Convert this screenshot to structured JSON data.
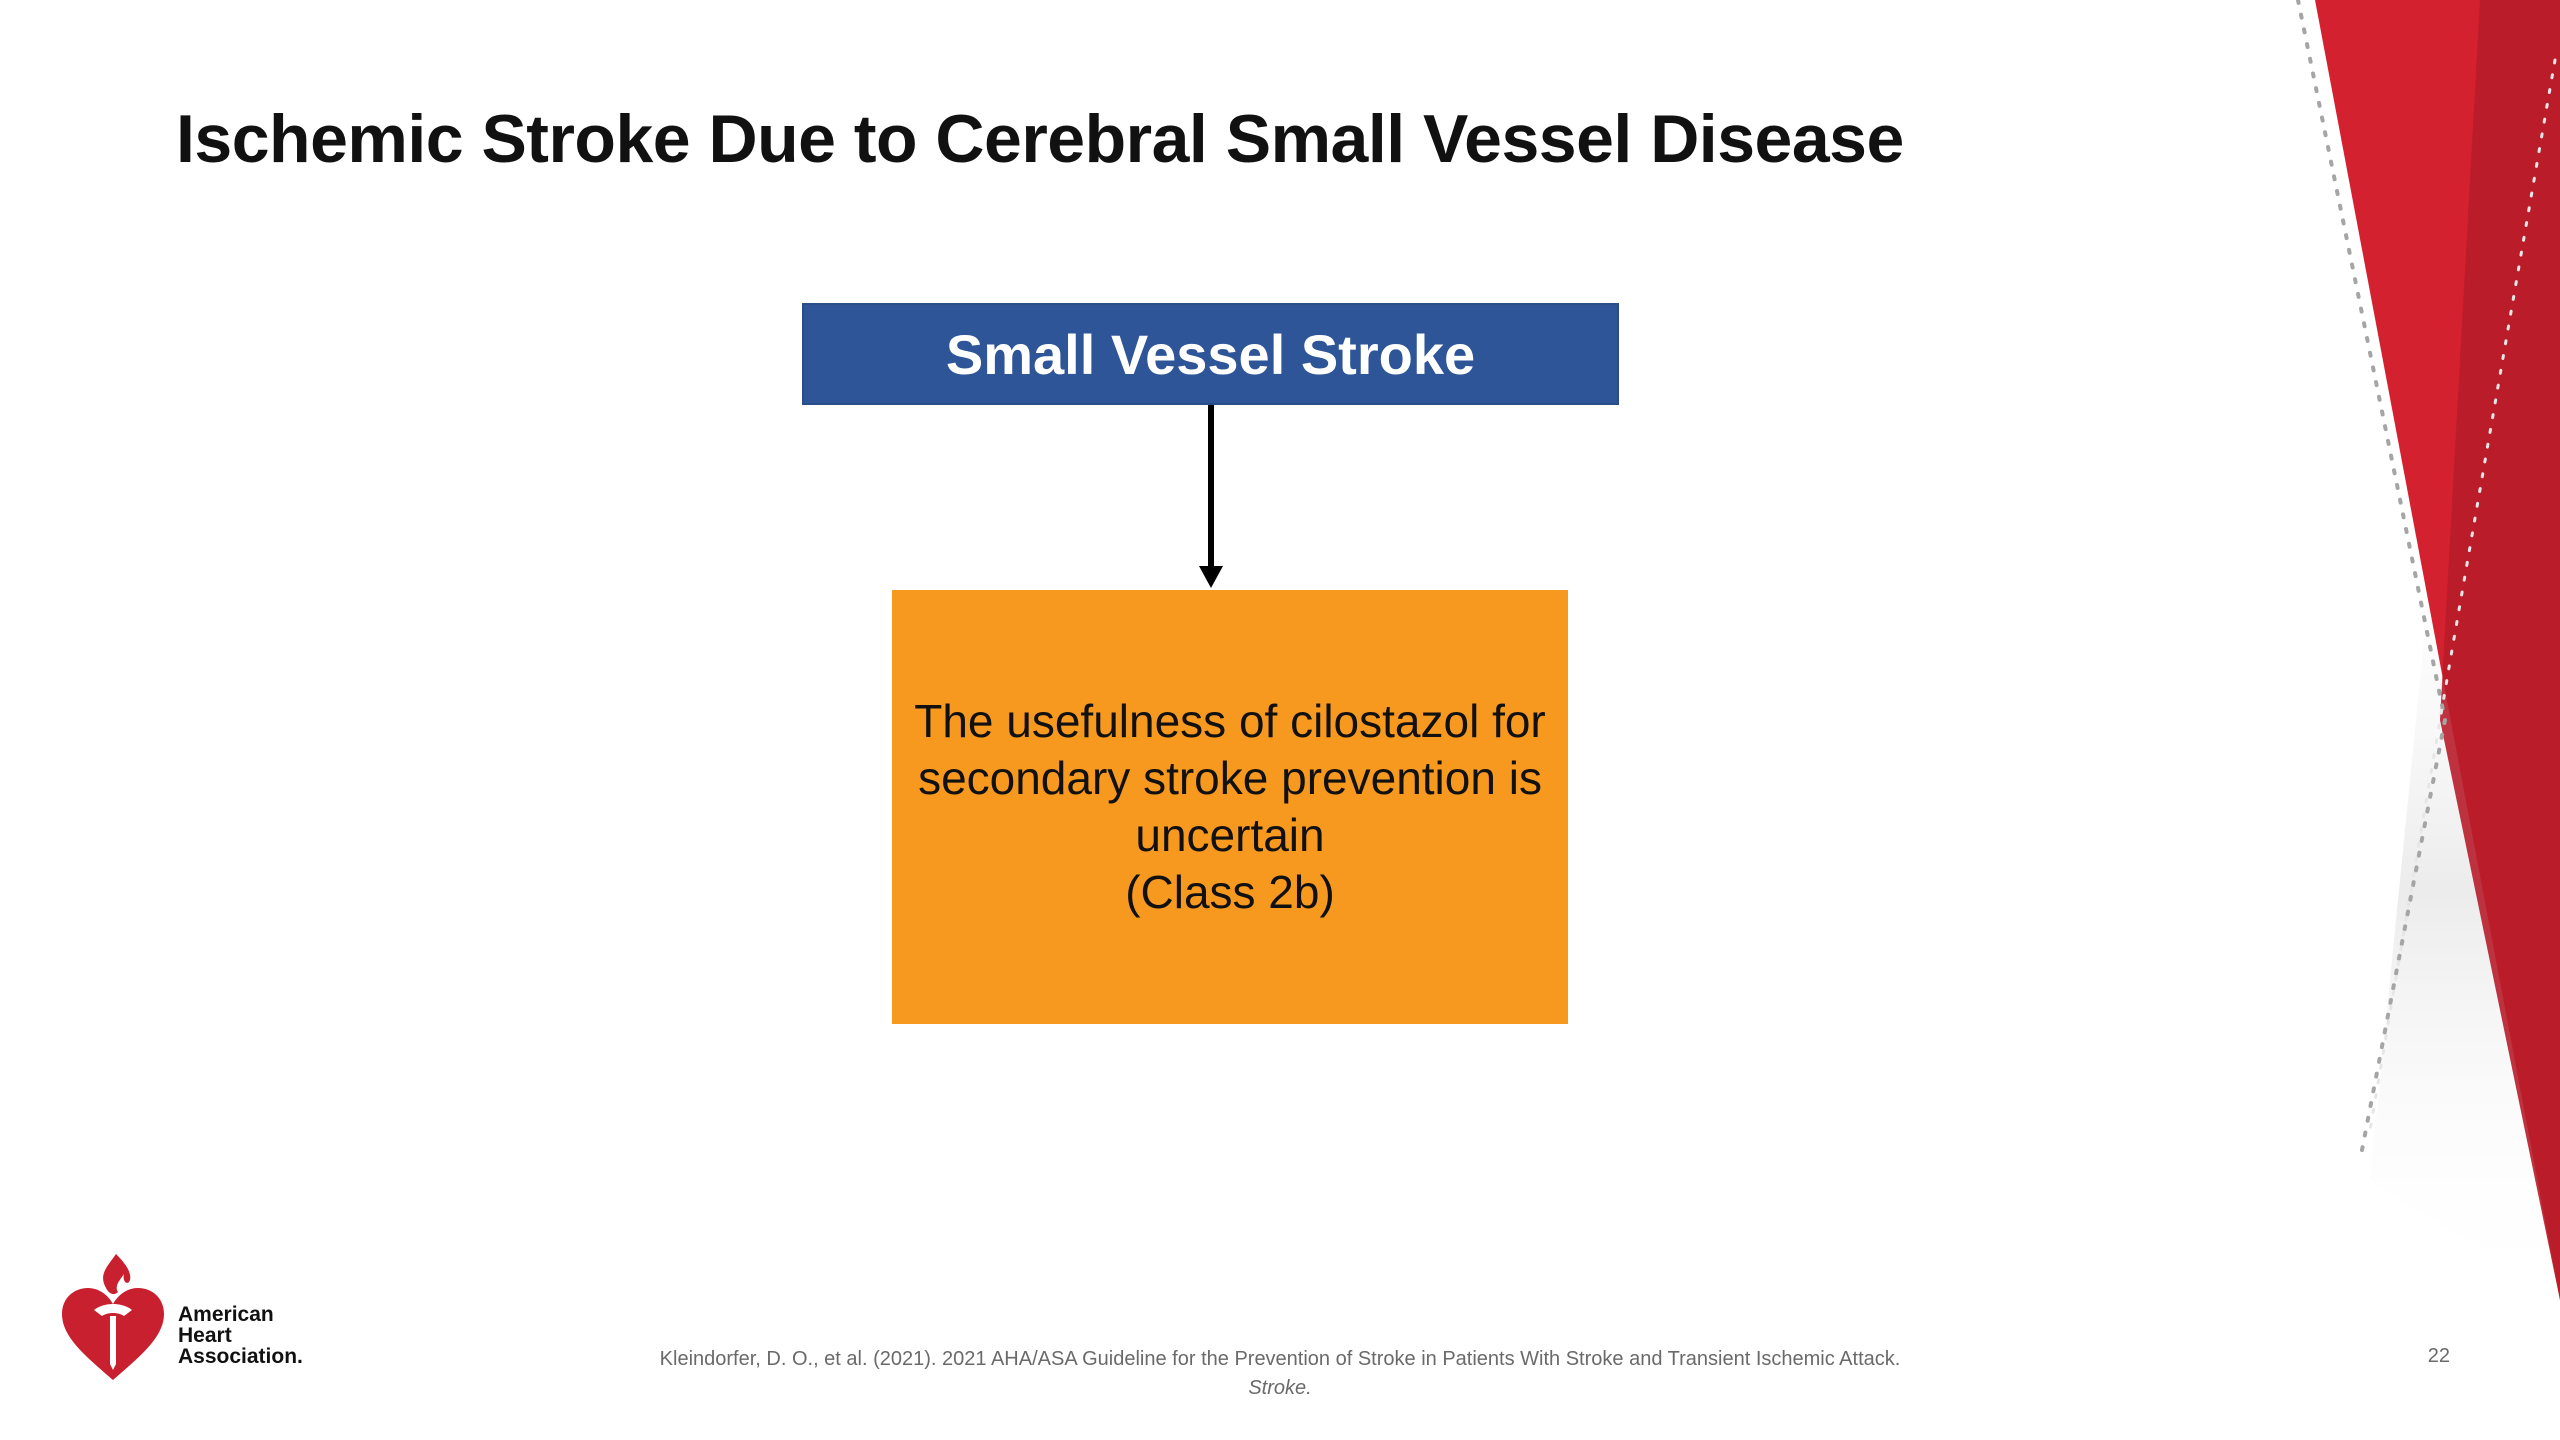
{
  "slide": {
    "title": "Ischemic Stroke Due to Cerebral Small Vessel Disease",
    "flow": {
      "top_box": "Small Vessel Stroke",
      "bottom_box_lines": [
        "The usefulness of cilostazol for",
        "secondary stroke prevention is",
        "uncertain",
        "(Class 2b)"
      ]
    },
    "logo": {
      "lines": [
        "American",
        "Heart",
        "Association."
      ]
    },
    "citation": {
      "text": "Kleindorfer, D. O., et al. (2021).  2021 AHA/ASA Guideline for the Prevention of Stroke in Patients With Stroke and Transient Ischemic Attack.",
      "journal": "Stroke."
    },
    "page_number": "22"
  },
  "colors": {
    "top_box": "#2e5597",
    "bottom_box": "#f7991e",
    "accent_red": "#c8202f",
    "logo_red": "#c8202f"
  }
}
